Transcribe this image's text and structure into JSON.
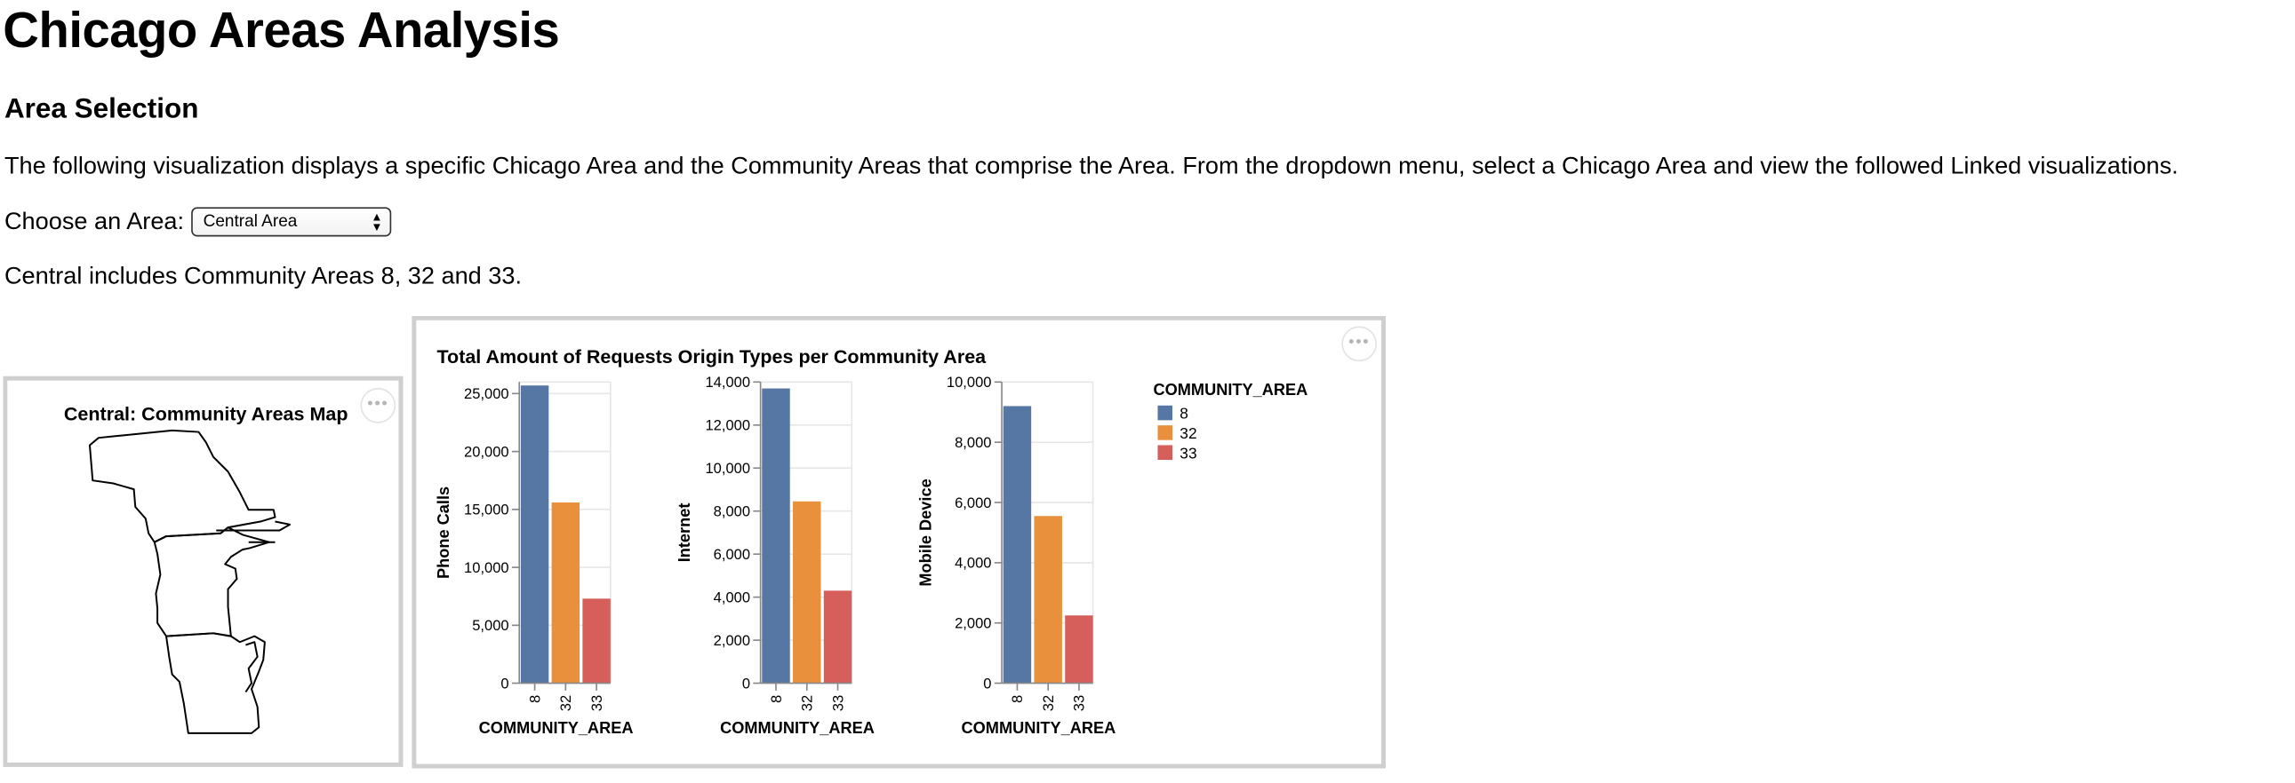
{
  "page": {
    "title": "Chicago Areas Analysis",
    "section_title": "Area Selection",
    "description": "The following visualization displays a specific Chicago Area and the Community Areas that comprise the Area. From the dropdown menu, select a Chicago Area and view the followed Linked visualizations.",
    "choose_label": "Choose an Area:",
    "selected_area": "Central Area",
    "summary": "Central includes Community Areas 8, 32 and 33."
  },
  "map": {
    "title": "Central: Community Areas Map",
    "menu_icon": "more-dots-icon"
  },
  "chart_panel": {
    "menu_icon": "more-dots-icon"
  },
  "chart_data": {
    "type": "bar",
    "title": "Total Amount of Requests Origin Types per Community Area",
    "categories": [
      "8",
      "32",
      "33"
    ],
    "colors": [
      "#5677a4",
      "#e8903c",
      "#d65f5b"
    ],
    "legend": {
      "title": "COMMUNITY_AREA",
      "placement": "right",
      "labels": [
        "8",
        "32",
        "33"
      ]
    },
    "grid": true,
    "panels": [
      {
        "ylabel": "Phone Calls",
        "xlabel": "COMMUNITY_AREA",
        "ylim": [
          0,
          26000
        ],
        "ticks": [
          0,
          5000,
          10000,
          15000,
          20000,
          25000
        ],
        "tick_labels": [
          "0",
          "5,000",
          "10,000",
          "15,000",
          "20,000",
          "25,000"
        ],
        "values": [
          25700,
          15600,
          7300
        ]
      },
      {
        "ylabel": "Internet",
        "xlabel": "COMMUNITY_AREA",
        "ylim": [
          0,
          14000
        ],
        "ticks": [
          0,
          2000,
          4000,
          6000,
          8000,
          10000,
          12000,
          14000
        ],
        "tick_labels": [
          "0",
          "2,000",
          "4,000",
          "6,000",
          "8,000",
          "10,000",
          "12,000",
          "14,000"
        ],
        "values": [
          13700,
          8450,
          4300
        ]
      },
      {
        "ylabel": "Mobile Device",
        "xlabel": "COMMUNITY_AREA",
        "ylim": [
          0,
          10000
        ],
        "ticks": [
          0,
          2000,
          4000,
          6000,
          8000,
          10000
        ],
        "tick_labels": [
          "0",
          "2,000",
          "4,000",
          "6,000",
          "8,000",
          "10,000"
        ],
        "values": [
          9200,
          5550,
          2250
        ]
      }
    ]
  }
}
